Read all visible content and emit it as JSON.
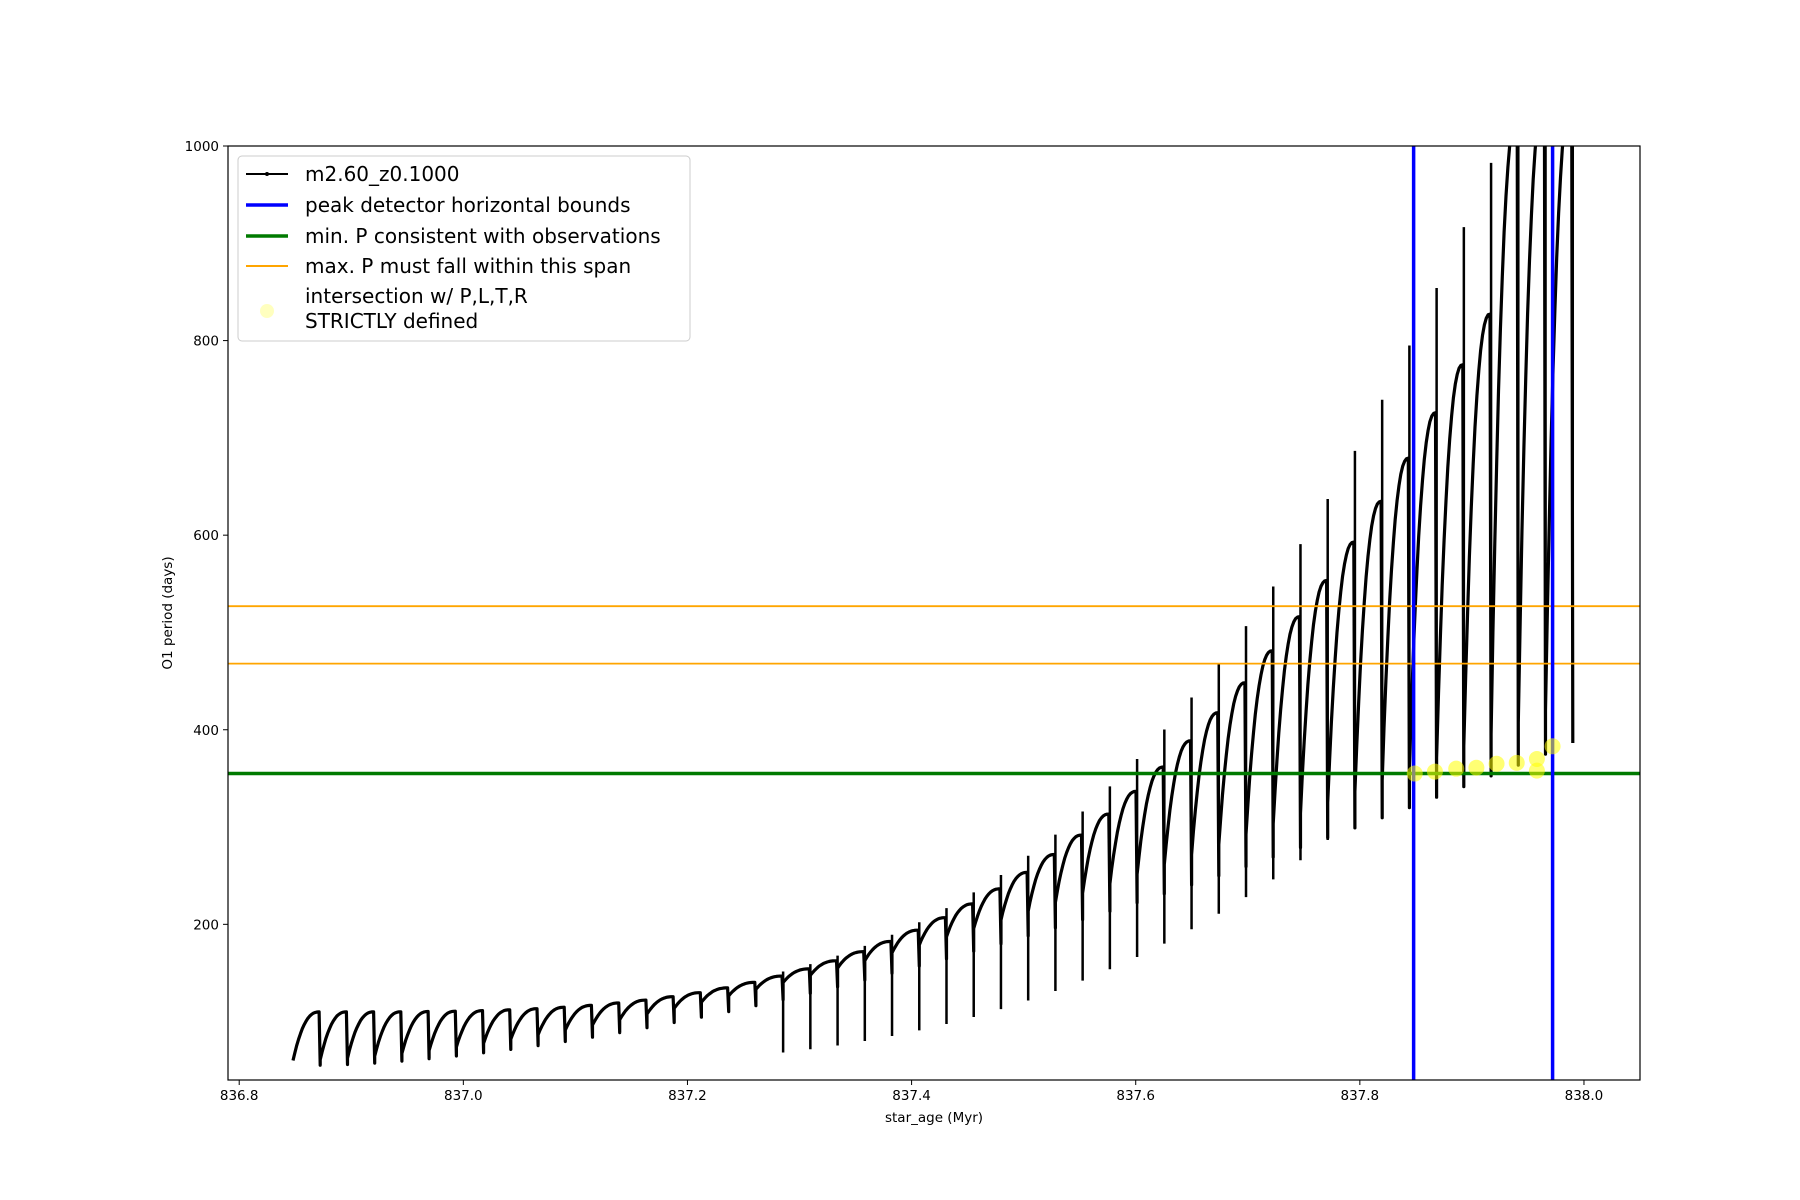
{
  "chart_data": {
    "type": "line",
    "title": "",
    "xlabel": "star_age (Myr)",
    "ylabel": "O1 period (days)",
    "xlim": [
      836.79,
      838.05
    ],
    "ylim": [
      40,
      1000
    ],
    "x_ticks": [
      "836.8",
      "837.0",
      "837.2",
      "837.4",
      "837.6",
      "837.8",
      "838.0"
    ],
    "y_ticks": [
      "200",
      "400",
      "600",
      "800",
      "1000"
    ],
    "grid": false,
    "legend_position": "top-left",
    "series": [
      {
        "name": "m2.60_z0.1000",
        "kind": "line-with-markers",
        "color": "#000000",
        "x_start": 836.848,
        "x_end": 837.99,
        "cycles": 47,
        "trough_start": 60,
        "trough_end": 420,
        "peak_start": 110,
        "peak_end": 1000
      }
    ],
    "vlines": [
      {
        "name": "peak detector horizontal bounds",
        "x": [
          837.848,
          837.972
        ],
        "color": "#0000ff"
      }
    ],
    "hlines": [
      {
        "name": "min. P consistent with observations",
        "y": [
          355
        ],
        "color": "#007a00"
      },
      {
        "name": "max. P must fall within this span",
        "y": [
          468,
          527
        ],
        "color": "#ffa500"
      }
    ],
    "scatter": {
      "name": "intersection w/ P,L,T,R\nSTRICTLY defined",
      "legend_lines": [
        "intersection w/ P,L,T,R",
        "STRICTLY defined"
      ],
      "color": "#ffff00",
      "points": [
        {
          "x": 837.849,
          "y": 355
        },
        {
          "x": 837.867,
          "y": 357
        },
        {
          "x": 837.886,
          "y": 360
        },
        {
          "x": 837.904,
          "y": 361
        },
        {
          "x": 837.922,
          "y": 365
        },
        {
          "x": 837.94,
          "y": 366
        },
        {
          "x": 837.958,
          "y": 358
        },
        {
          "x": 837.958,
          "y": 370
        },
        {
          "x": 837.972,
          "y": 383
        }
      ]
    }
  }
}
